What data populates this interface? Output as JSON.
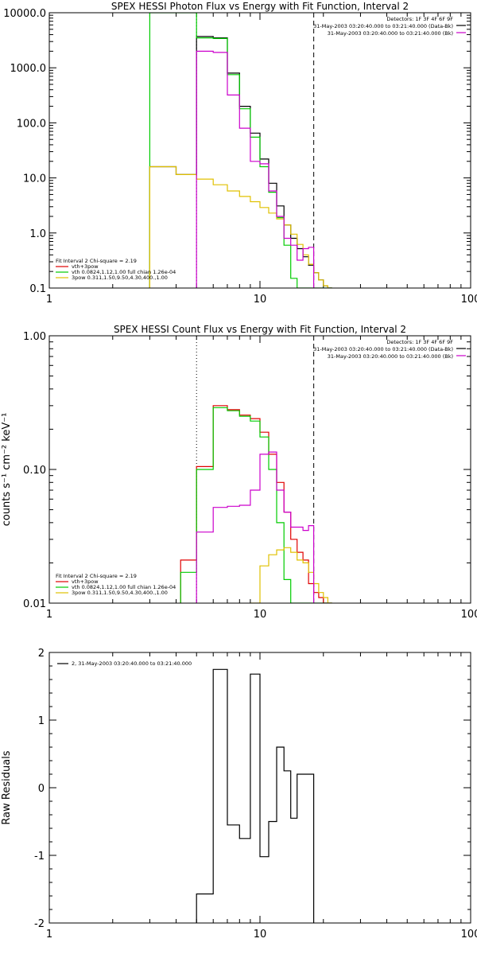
{
  "colors": {
    "total": "#000000",
    "fit_sum": "#e00000",
    "thermal": "#00cc00",
    "powerlaw": "#e0c000",
    "data": "#cc00cc",
    "axis": "#000000"
  },
  "panels": {
    "photon": {
      "title": "SPEX HESSI Photon Flux vs Energy with Fit Function, Interval 2",
      "header_lines": [
        "Detectors: 1F 3F 4F 6F 9F",
        "31-May-2003 03:20:40.000 to 03:21:40.000 (Data-Bk)",
        "31-May-2003 03:20:40.000 to 03:21:40.000 (Bk)"
      ],
      "legend": {
        "title": "Fit Interval 2   Chi-square = 2.19",
        "entries": [
          "vth+3pow",
          "vth 0.0824,1.12,1.00  full chian 1.26e-04",
          "3pow 0.311,1.50,9.50,4.30,400.,1.00"
        ]
      },
      "y_ticks": [
        "10000.0",
        "1000.0",
        "100.0",
        "10.0",
        "1.0",
        "0.1"
      ],
      "x_ticks": [
        "1",
        "10",
        "100"
      ]
    },
    "count": {
      "title": "SPEX HESSI Count Flux vs Energy with Fit Function, Interval 2",
      "ylabel": "counts s⁻¹ cm⁻² keV⁻¹",
      "header_lines": [
        "Detectors: 1F 3F 4F 6F 9F",
        "31-May-2003 03:20:40.000 to 03:21:40.000 (Data-Bk)",
        "31-May-2003 03:20:40.000 to 03:21:40.000 (Bk)"
      ],
      "legend": {
        "title": "Fit Interval 2   Chi-square = 2.19",
        "entries": [
          "vth+3pow",
          "vth 0.0824,1.12,1.00  full chian 1.26e-04",
          "3pow 0.311,1.50,9.50,4.30,400.,1.00"
        ]
      },
      "y_ticks": [
        "1.00",
        "0.10",
        "0.01"
      ],
      "x_ticks": [
        "1",
        "10",
        "100"
      ]
    },
    "residuals": {
      "ylabel": "Raw Residuals",
      "legend_entry": "2, 31-May-2003 03:20:40.000 to 03:21:40.000",
      "y_ticks": [
        "2",
        "1",
        "0",
        "-1",
        "-2"
      ],
      "x_ticks": [
        "1",
        "10",
        "100"
      ]
    }
  },
  "chart_data": [
    {
      "type": "line",
      "title": "SPEX HESSI Photon Flux vs Energy with Fit Function, Interval 2",
      "xlabel": "",
      "ylabel": "",
      "xscale": "log",
      "yscale": "log",
      "xlim": [
        1,
        100
      ],
      "ylim": [
        0.1,
        10000
      ],
      "vlines": [
        {
          "x": 5.0,
          "style": "dotted"
        },
        {
          "x": 18.0,
          "style": "dashed"
        }
      ],
      "series": [
        {
          "name": "vth+3pow",
          "color_key": "total",
          "step_edges": [
            3,
            4,
            5,
            6,
            7,
            8,
            9,
            10,
            11,
            12,
            13,
            14,
            15,
            16,
            17,
            18,
            19,
            20,
            21,
            22
          ],
          "values": [
            16,
            11.5,
            3700,
            3500,
            800,
            200,
            65,
            22,
            8.0,
            3.1,
            1.4,
            0.8,
            0.52,
            0.37,
            0.26,
            0.19,
            0.14,
            0.11,
            0.1
          ]
        },
        {
          "name": "vth 0.0824,1.12,1.00  full chian 1.26e-04",
          "color_key": "thermal",
          "step_edges": [
            3,
            4,
            5,
            6,
            7,
            8,
            9,
            10,
            11,
            12,
            13,
            14,
            15,
            16,
            17,
            18,
            19,
            20,
            21,
            22
          ],
          "values": [
            10000,
            10000,
            3500,
            3400,
            750,
            180,
            55,
            16,
            5.5,
            1.9,
            0.6,
            0.15,
            0.1,
            0.1,
            0.1,
            0.1,
            0.1,
            0.1,
            0.1
          ]
        },
        {
          "name": "3pow 0.311,1.50,9.50,4.30,400.,1.00",
          "color_key": "powerlaw",
          "step_edges": [
            3,
            4,
            5,
            6,
            7,
            8,
            9,
            10,
            11,
            12,
            13,
            14,
            15,
            16,
            17,
            18,
            19,
            20,
            21,
            22
          ],
          "values": [
            16,
            11.5,
            9.5,
            7.5,
            5.8,
            4.6,
            3.7,
            2.9,
            2.3,
            1.8,
            1.4,
            0.95,
            0.62,
            0.4,
            0.27,
            0.19,
            0.14,
            0.11,
            0.1
          ]
        },
        {
          "name": "Data-Bk",
          "color_key": "data",
          "step_edges": [
            5,
            6,
            7,
            8,
            9,
            10,
            11,
            12,
            13,
            14,
            15,
            16,
            17,
            18
          ],
          "values": [
            2000,
            1900,
            320,
            80,
            20,
            18,
            5.8,
            2.0,
            0.8,
            0.6,
            0.32,
            0.52,
            0.55
          ]
        }
      ]
    },
    {
      "type": "line",
      "title": "SPEX HESSI Count Flux vs Energy with Fit Function, Interval 2",
      "xlabel": "",
      "ylabel": "counts s⁻¹ cm⁻² keV⁻¹",
      "xscale": "log",
      "yscale": "log",
      "xlim": [
        1,
        100
      ],
      "ylim": [
        0.01,
        1.0
      ],
      "vlines": [
        {
          "x": 5.0,
          "style": "dotted"
        },
        {
          "x": 18.0,
          "style": "dashed"
        }
      ],
      "series": [
        {
          "name": "vth+3pow",
          "color_key": "fit_sum",
          "step_edges": [
            4.2,
            5,
            6,
            7,
            8,
            9,
            10,
            11,
            12,
            13,
            14,
            15,
            16,
            17,
            18,
            19,
            20,
            21,
            22
          ],
          "values": [
            0.021,
            0.105,
            0.3,
            0.28,
            0.255,
            0.24,
            0.19,
            0.13,
            0.08,
            0.048,
            0.03,
            0.024,
            0.021,
            0.014,
            0.012,
            0.011,
            0.01,
            0.01
          ]
        },
        {
          "name": "vth 0.0824,1.12,1.00  full chian 1.26e-04",
          "color_key": "thermal",
          "step_edges": [
            4.2,
            5,
            6,
            7,
            8,
            9,
            10,
            11,
            12,
            13,
            14,
            15,
            16,
            17,
            18,
            19,
            20,
            21,
            22
          ],
          "values": [
            0.017,
            0.1,
            0.29,
            0.275,
            0.25,
            0.23,
            0.175,
            0.1,
            0.04,
            0.015,
            0.01,
            0.01,
            0.01,
            0.01,
            0.01,
            0.01,
            0.01,
            0.01
          ]
        },
        {
          "name": "3pow 0.311,1.50,9.50,4.30,400.,1.00",
          "color_key": "powerlaw",
          "step_edges": [
            9,
            10,
            11,
            12,
            13,
            14,
            15,
            16,
            17,
            18,
            19,
            20,
            21,
            22
          ],
          "values": [
            0.01,
            0.019,
            0.023,
            0.025,
            0.026,
            0.024,
            0.021,
            0.02,
            0.017,
            0.014,
            0.012,
            0.011,
            0.01
          ]
        },
        {
          "name": "Data-Bk",
          "color_key": "data",
          "step_edges": [
            5,
            6,
            7,
            8,
            9,
            10,
            11,
            12,
            13,
            14,
            15,
            16,
            17,
            18
          ],
          "values": [
            0.034,
            0.052,
            0.053,
            0.054,
            0.07,
            0.13,
            0.135,
            0.07,
            0.048,
            0.037,
            0.037,
            0.035,
            0.038
          ]
        }
      ]
    },
    {
      "type": "line",
      "title": "",
      "xlabel": "",
      "ylabel": "Raw Residuals",
      "xscale": "log",
      "yscale": "linear",
      "xlim": [
        1,
        100
      ],
      "ylim": [
        -2,
        2
      ],
      "series": [
        {
          "name": "2, 31-May-2003 03:20:40.000 to 03:21:40.000",
          "color_key": "total",
          "step_edges": [
            5,
            6,
            7,
            8,
            9,
            10,
            11,
            12,
            13,
            14,
            15,
            16,
            17,
            18
          ],
          "values": [
            -1.57,
            1.75,
            -0.55,
            -0.75,
            1.68,
            -1.02,
            -0.5,
            0.6,
            0.25,
            -0.45,
            0.2,
            0.2,
            0.2
          ]
        }
      ]
    }
  ]
}
